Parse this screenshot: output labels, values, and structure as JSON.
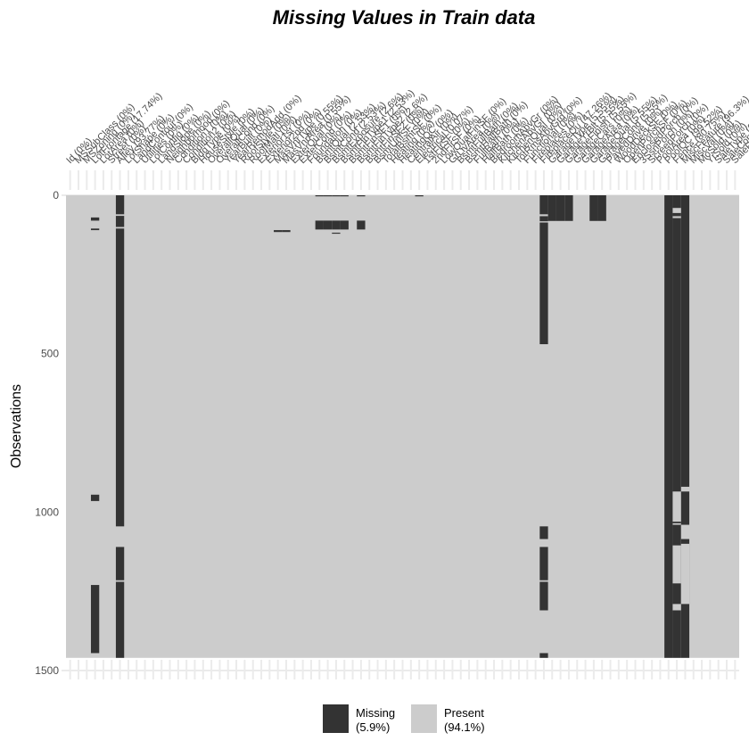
{
  "colors": {
    "missing": "#333333",
    "present": "#cccccc",
    "background": "#ffffff",
    "text": "#4d4d4d",
    "grid": "#ebebeb"
  },
  "chart_data": {
    "type": "heatmap",
    "title": "Missing Values in Train data",
    "xlabel": "",
    "ylabel": "Observations",
    "n_obs": 1460,
    "ylim": [
      0,
      1500
    ],
    "yticks": [
      0,
      500,
      1000,
      1500
    ],
    "columns": [
      {
        "name": "Id",
        "pct": "0%"
      },
      {
        "name": "MSSubClass",
        "pct": "0%"
      },
      {
        "name": "MSZoning",
        "pct": "0%"
      },
      {
        "name": "LotFrontage",
        "pct": "17.74%"
      },
      {
        "name": "LotArea",
        "pct": "0%"
      },
      {
        "name": "Street",
        "pct": "0%"
      },
      {
        "name": "Alley",
        "pct": "93.77%"
      },
      {
        "name": "LotShape",
        "pct": "0%"
      },
      {
        "name": "LandContour",
        "pct": "0%"
      },
      {
        "name": "Utilities",
        "pct": "0%"
      },
      {
        "name": "LotConfig",
        "pct": "0%"
      },
      {
        "name": "LandSlope",
        "pct": "0%"
      },
      {
        "name": "Neighborhood",
        "pct": "0%"
      },
      {
        "name": "Condition1",
        "pct": "0%"
      },
      {
        "name": "Condition2",
        "pct": "0%"
      },
      {
        "name": "BldgType",
        "pct": "0%"
      },
      {
        "name": "HouseStyle",
        "pct": "0%"
      },
      {
        "name": "OverallQual",
        "pct": "0%"
      },
      {
        "name": "OverallCond",
        "pct": "0%"
      },
      {
        "name": "YearBuilt",
        "pct": "0%"
      },
      {
        "name": "YearRemodAdd",
        "pct": "0%"
      },
      {
        "name": "RoofStyle",
        "pct": "0%"
      },
      {
        "name": "RoofMatl",
        "pct": "0%"
      },
      {
        "name": "Exterior1st",
        "pct": "0%"
      },
      {
        "name": "Exterior2nd",
        "pct": "0%"
      },
      {
        "name": "MasVnrType",
        "pct": "0.55%"
      },
      {
        "name": "MasVnrArea",
        "pct": "0.55%"
      },
      {
        "name": "ExterQual",
        "pct": "0%"
      },
      {
        "name": "ExterCond",
        "pct": "0%"
      },
      {
        "name": "Foundation",
        "pct": "0%"
      },
      {
        "name": "BsmtQual",
        "pct": "2.53%"
      },
      {
        "name": "BsmtCond",
        "pct": "2.53%"
      },
      {
        "name": "BsmtExposure",
        "pct": "2.6%"
      },
      {
        "name": "BsmtFinType1",
        "pct": "2.53%"
      },
      {
        "name": "BsmtFinSF1",
        "pct": "0%"
      },
      {
        "name": "BsmtFinType2",
        "pct": "2.6%"
      },
      {
        "name": "BsmtFinSF2",
        "pct": "0%"
      },
      {
        "name": "BsmtUnfSF",
        "pct": "0%"
      },
      {
        "name": "TotalBsmtSF",
        "pct": "0%"
      },
      {
        "name": "Heating",
        "pct": "0%"
      },
      {
        "name": "HeatingQC",
        "pct": "0%"
      },
      {
        "name": "CentralAir",
        "pct": "0%"
      },
      {
        "name": "Electrical",
        "pct": "0.07%"
      },
      {
        "name": "1stFlrSF",
        "pct": "0%"
      },
      {
        "name": "2ndFlrSF",
        "pct": "0%"
      },
      {
        "name": "LowQualFinSF",
        "pct": "0%"
      },
      {
        "name": "GrLivArea",
        "pct": "0%"
      },
      {
        "name": "BsmtFullBath",
        "pct": "0%"
      },
      {
        "name": "BsmtHalfBath",
        "pct": "0%"
      },
      {
        "name": "FullBath",
        "pct": "0%"
      },
      {
        "name": "HalfBath",
        "pct": "0%"
      },
      {
        "name": "BedroomAbvGr",
        "pct": "0%"
      },
      {
        "name": "KitchenAbvGr",
        "pct": "0%"
      },
      {
        "name": "KitchenQual",
        "pct": "0%"
      },
      {
        "name": "TotRmsAbvGrd",
        "pct": "0%"
      },
      {
        "name": "Functional",
        "pct": "0%"
      },
      {
        "name": "Fireplaces",
        "pct": "0%"
      },
      {
        "name": "FireplaceQu",
        "pct": "47.26%"
      },
      {
        "name": "GarageType",
        "pct": "5.55%"
      },
      {
        "name": "GarageYrBlt",
        "pct": "5.55%"
      },
      {
        "name": "GarageFinish",
        "pct": "5.55%"
      },
      {
        "name": "GarageCars",
        "pct": "0%"
      },
      {
        "name": "GarageArea",
        "pct": "0%"
      },
      {
        "name": "GarageQual",
        "pct": "5.55%"
      },
      {
        "name": "GarageCond",
        "pct": "5.55%"
      },
      {
        "name": "PavedDrive",
        "pct": "0%"
      },
      {
        "name": "WoodDeckSF",
        "pct": "0%"
      },
      {
        "name": "OpenPorchSF",
        "pct": "0%"
      },
      {
        "name": "EnclosedPorch",
        "pct": "0%"
      },
      {
        "name": "3SsnPorch",
        "pct": "0%"
      },
      {
        "name": "ScreenPorch",
        "pct": "0%"
      },
      {
        "name": "PoolArea",
        "pct": "0%"
      },
      {
        "name": "PoolQC",
        "pct": "99.52%"
      },
      {
        "name": "Fence",
        "pct": "80.75%"
      },
      {
        "name": "MiscFeature",
        "pct": "96.3%"
      },
      {
        "name": "MiscVal",
        "pct": "0%"
      },
      {
        "name": "MoSold",
        "pct": "0%"
      },
      {
        "name": "YrSold",
        "pct": "0%"
      },
      {
        "name": "SaleType",
        "pct": "0%"
      },
      {
        "name": "SaleCondition",
        "pct": "0%"
      },
      {
        "name": "SalePrice",
        "pct": "0%"
      }
    ],
    "missing_runs": [
      {
        "col": 3,
        "y0": 70,
        "y1": 80
      },
      {
        "col": 3,
        "y0": 105,
        "y1": 110
      },
      {
        "col": 3,
        "y0": 945,
        "y1": 965
      },
      {
        "col": 3,
        "y0": 1230,
        "y1": 1445
      },
      {
        "col": 6,
        "y0": 0,
        "y1": 60
      },
      {
        "col": 6,
        "y0": 65,
        "y1": 100
      },
      {
        "col": 6,
        "y0": 105,
        "y1": 1045
      },
      {
        "col": 6,
        "y0": 1110,
        "y1": 1215
      },
      {
        "col": 6,
        "y0": 1220,
        "y1": 1460
      },
      {
        "col": 25,
        "y0": 110,
        "y1": 116
      },
      {
        "col": 26,
        "y0": 110,
        "y1": 116
      },
      {
        "col": 30,
        "y0": 0,
        "y1": 3
      },
      {
        "col": 30,
        "y0": 80,
        "y1": 108
      },
      {
        "col": 31,
        "y0": 0,
        "y1": 3
      },
      {
        "col": 31,
        "y0": 80,
        "y1": 108
      },
      {
        "col": 32,
        "y0": 0,
        "y1": 3
      },
      {
        "col": 32,
        "y0": 80,
        "y1": 108
      },
      {
        "col": 32,
        "y0": 118,
        "y1": 121
      },
      {
        "col": 33,
        "y0": 0,
        "y1": 3
      },
      {
        "col": 33,
        "y0": 80,
        "y1": 108
      },
      {
        "col": 35,
        "y0": 0,
        "y1": 3
      },
      {
        "col": 35,
        "y0": 80,
        "y1": 108
      },
      {
        "col": 42,
        "y0": 0,
        "y1": 2
      },
      {
        "col": 57,
        "y0": 0,
        "y1": 60
      },
      {
        "col": 57,
        "y0": 66,
        "y1": 82
      },
      {
        "col": 57,
        "y0": 86,
        "y1": 470
      },
      {
        "col": 57,
        "y0": 1045,
        "y1": 1085
      },
      {
        "col": 57,
        "y0": 1110,
        "y1": 1215
      },
      {
        "col": 57,
        "y0": 1220,
        "y1": 1310
      },
      {
        "col": 57,
        "y0": 1445,
        "y1": 1460
      },
      {
        "col": 58,
        "y0": 0,
        "y1": 81
      },
      {
        "col": 59,
        "y0": 0,
        "y1": 81
      },
      {
        "col": 60,
        "y0": 0,
        "y1": 81
      },
      {
        "col": 63,
        "y0": 0,
        "y1": 81
      },
      {
        "col": 64,
        "y0": 0,
        "y1": 81
      },
      {
        "col": 72,
        "y0": 0,
        "y1": 1460
      },
      {
        "col": 73,
        "y0": 0,
        "y1": 1035
      },
      {
        "col": 73,
        "y0": 1040,
        "y1": 1460
      },
      {
        "col": 74,
        "y0": 0,
        "y1": 920
      },
      {
        "col": 74,
        "y0": 935,
        "y1": 1040
      },
      {
        "col": 74,
        "y0": 1085,
        "y1": 1460
      }
    ],
    "present_runs": [
      {
        "col": 73,
        "y0": 40,
        "y1": 56
      },
      {
        "col": 73,
        "y0": 66,
        "y1": 72
      },
      {
        "col": 73,
        "y0": 935,
        "y1": 1030
      },
      {
        "col": 73,
        "y0": 1105,
        "y1": 1225
      },
      {
        "col": 73,
        "y0": 1290,
        "y1": 1310
      },
      {
        "col": 74,
        "y0": 1100,
        "y1": 1290
      }
    ],
    "legend": [
      {
        "label": "Missing",
        "pct": "(5.9%)"
      },
      {
        "label": "Present",
        "pct": "(94.1%)"
      }
    ],
    "legend_position": "bottom"
  }
}
